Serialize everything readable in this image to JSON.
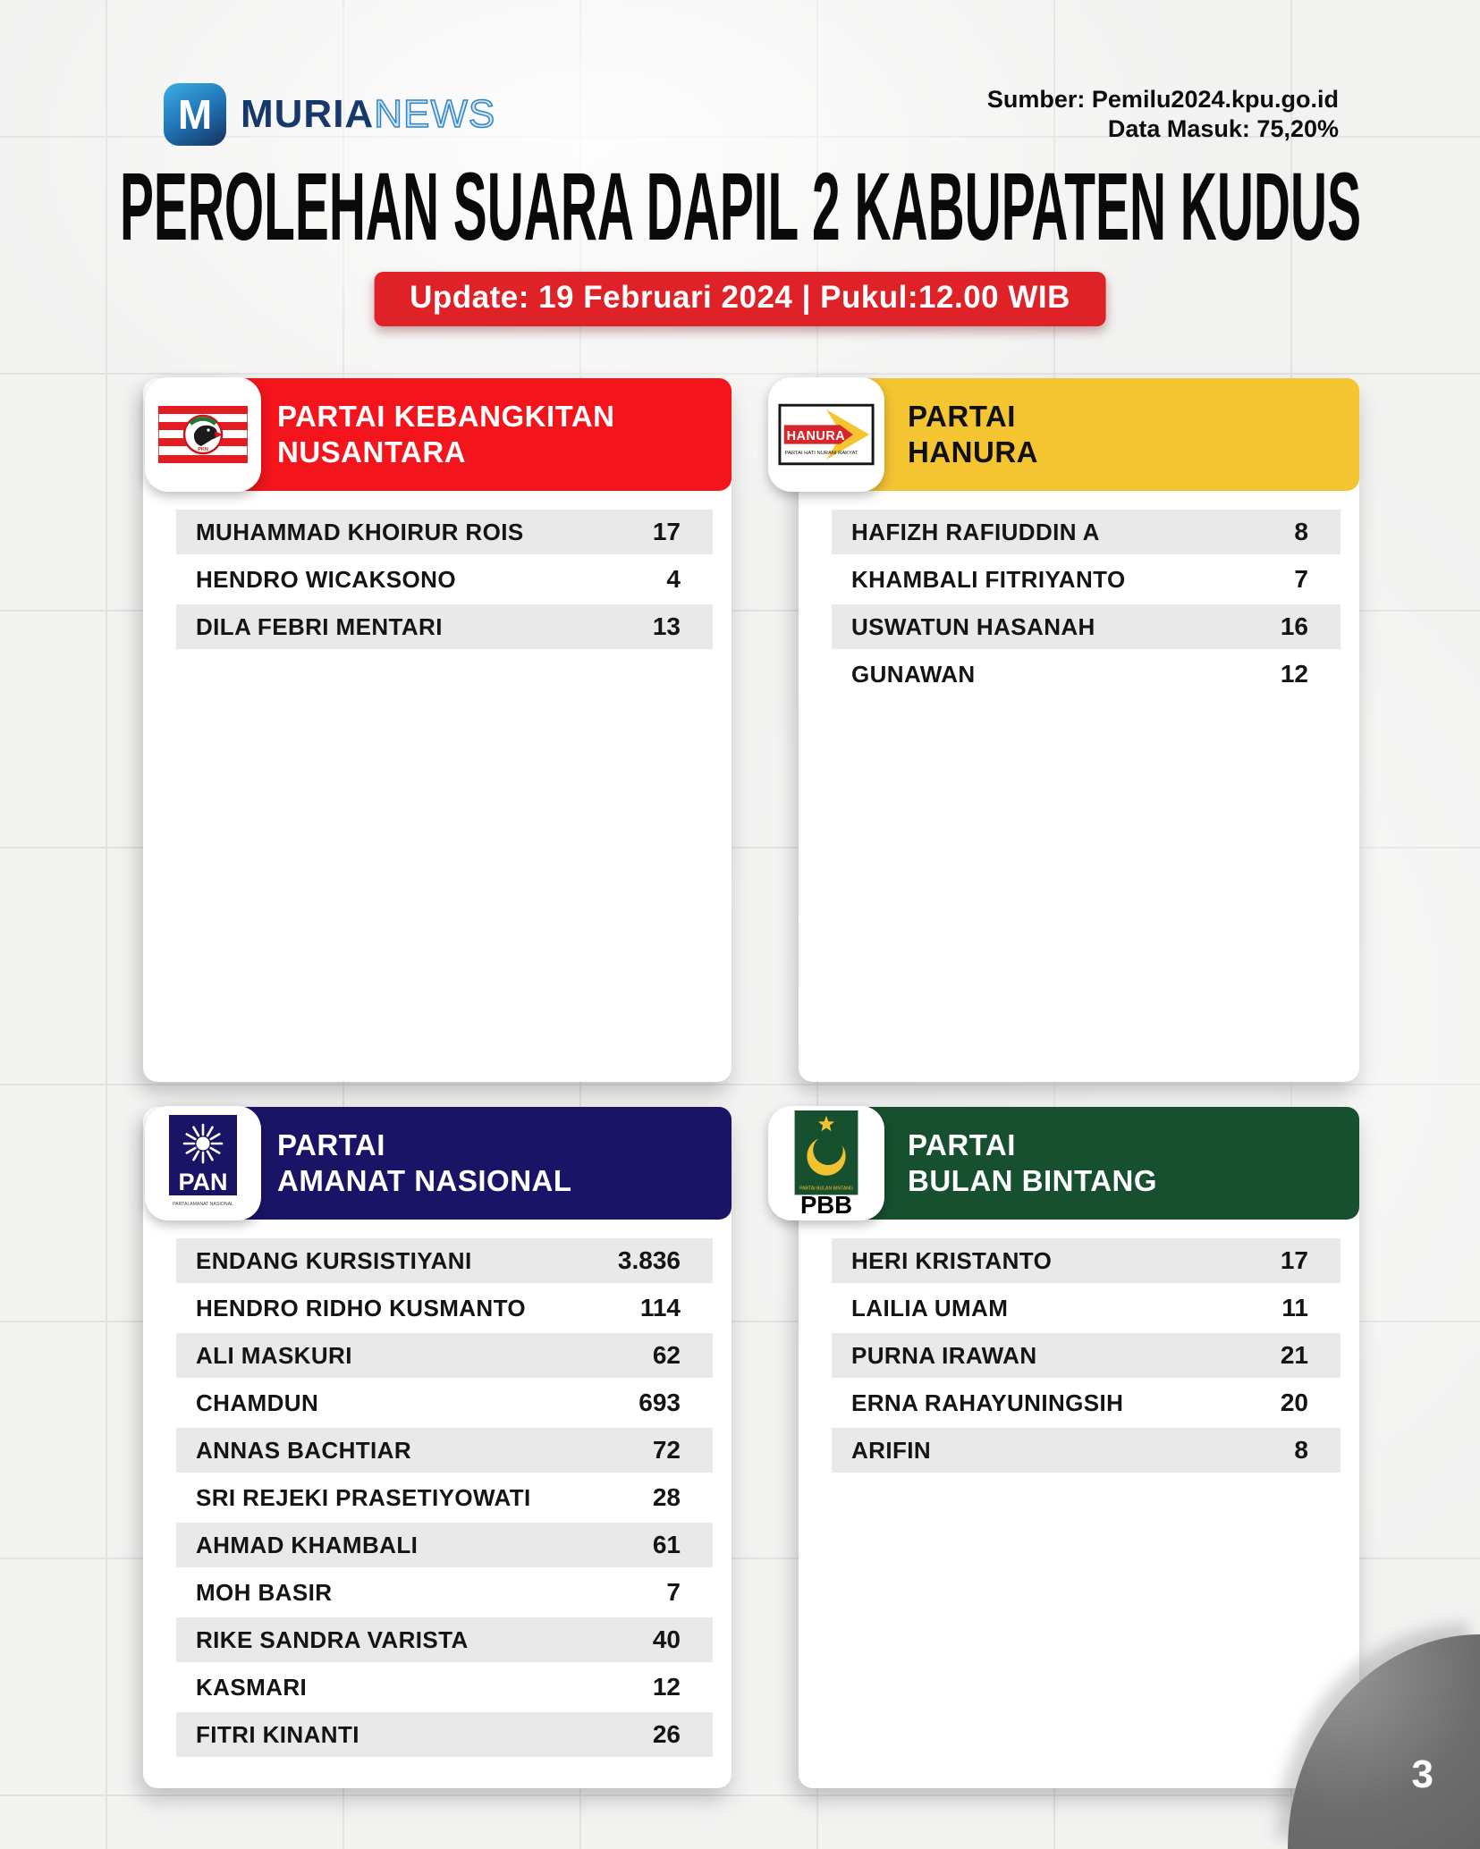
{
  "brand": {
    "icon_letter": "M",
    "muria": "MURIA",
    "news": "NEWS"
  },
  "source": {
    "line1": "Sumber: Pemilu2024.kpu.go.id",
    "line2": "Data Masuk: 75,20%"
  },
  "title": "PEROLEHAN SUARA DAPIL 2 KABUPATEN KUDUS",
  "update_banner": "Update: 19 Februari 2024 | Pukul:12.00 WIB",
  "page_number": "3",
  "colors": {
    "banner_red": "#DF2228",
    "pkn_red": "#F3151B",
    "hanura_yellow": "#F4C431",
    "pan_navy": "#1A1466",
    "pbb_green": "#17502F",
    "row_gray": "#E9E9E9",
    "blob_gray": "#6E6E6E",
    "brand_navy": "#16386B",
    "brand_blue": "#2E86C6"
  },
  "parties": [
    {
      "id": "pkn",
      "name_line1": "PARTAI KEBANGKITAN",
      "name_line2": "NUSANTARA",
      "header_bg": "#F3151B",
      "header_fg": "#FFFFFF",
      "logo_text": "PKN",
      "candidates": [
        {
          "name": "MUHAMMAD KHOIRUR ROIS",
          "votes": "17"
        },
        {
          "name": "HENDRO WICAKSONO",
          "votes": "4"
        },
        {
          "name": "DILA FEBRI MENTARI",
          "votes": "13"
        }
      ]
    },
    {
      "id": "hanura",
      "name_line1": "PARTAI",
      "name_line2": "HANURA",
      "header_bg": "#F4C431",
      "header_fg": "#101010",
      "logo_text": "HANURA",
      "logo_caption": "PARTAI HATI NURANI RAKYAT",
      "candidates": [
        {
          "name": "HAFIZH RAFIUDDIN A",
          "votes": "8"
        },
        {
          "name": "KHAMBALI FITRIYANTO",
          "votes": "7"
        },
        {
          "name": "USWATUN HASANAH",
          "votes": "16"
        },
        {
          "name": "GUNAWAN",
          "votes": "12"
        }
      ]
    },
    {
      "id": "pan",
      "name_line1": "PARTAI",
      "name_line2": "AMANAT NASIONAL",
      "header_bg": "#1A1466",
      "header_fg": "#FFFFFF",
      "logo_text": "PAN",
      "logo_caption": "PARTAI AMANAT NASIONAL",
      "candidates": [
        {
          "name": "ENDANG KURSISTIYANI",
          "votes": "3.836"
        },
        {
          "name": "HENDRO RIDHO KUSMANTO",
          "votes": "114"
        },
        {
          "name": "ALI MASKURI",
          "votes": "62"
        },
        {
          "name": "CHAMDUN",
          "votes": "693"
        },
        {
          "name": "ANNAS BACHTIAR",
          "votes": "72"
        },
        {
          "name": "SRI REJEKI PRASETIYOWATI",
          "votes": "28"
        },
        {
          "name": "AHMAD KHAMBALI",
          "votes": "61"
        },
        {
          "name": "MOH BASIR",
          "votes": "7"
        },
        {
          "name": "RIKE SANDRA VARISTA",
          "votes": "40"
        },
        {
          "name": "KASMARI",
          "votes": "12"
        },
        {
          "name": "FITRI KINANTI",
          "votes": "26"
        }
      ]
    },
    {
      "id": "pbb",
      "name_line1": "PARTAI",
      "name_line2": "BULAN BINTANG",
      "header_bg": "#17502F",
      "header_fg": "#FFFFFF",
      "logo_text": "PBB",
      "logo_caption": "PARTAI BULAN BINTANG",
      "candidates": [
        {
          "name": "HERI KRISTANTO",
          "votes": "17"
        },
        {
          "name": "LAILIA UMAM",
          "votes": "11"
        },
        {
          "name": "PURNA IRAWAN",
          "votes": "21"
        },
        {
          "name": "ERNA RAHAYUNINGSIH",
          "votes": "20"
        },
        {
          "name": "ARIFIN",
          "votes": "8"
        }
      ]
    }
  ]
}
